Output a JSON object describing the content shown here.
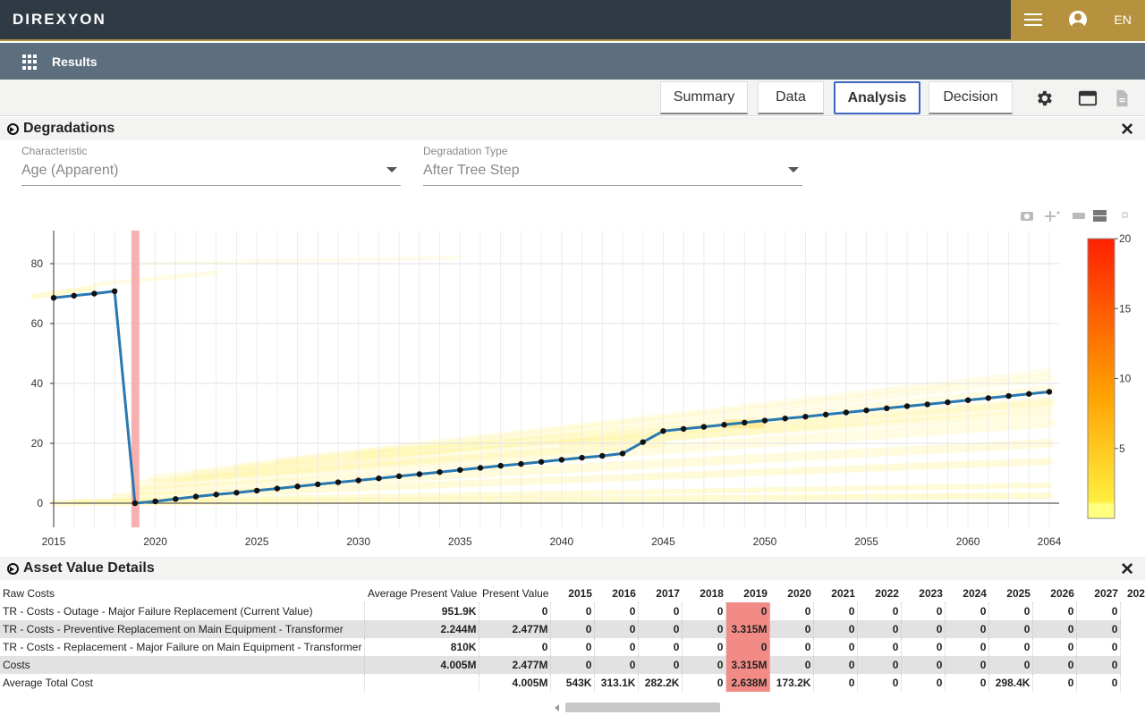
{
  "app": {
    "logo": "DIREXYON",
    "language": "EN"
  },
  "subbar": {
    "title": "Results"
  },
  "tabs": [
    {
      "label": "Summary"
    },
    {
      "label": "Data"
    },
    {
      "label": "Analysis",
      "active": true
    },
    {
      "label": "Decision"
    }
  ],
  "degradations": {
    "title": "Degradations",
    "characteristic_label": "Characteristic",
    "characteristic_value": "Age (Apparent)",
    "type_label": "Degradation Type",
    "type_value": "After Tree Step"
  },
  "chart_data": {
    "type": "line",
    "title": "",
    "xlabel": "",
    "ylabel": "",
    "xlim": [
      2015,
      2064
    ],
    "ylim": [
      -3,
      90
    ],
    "x_ticks": [
      2015,
      2020,
      2025,
      2030,
      2035,
      2040,
      2045,
      2050,
      2055,
      2060,
      2064
    ],
    "y_ticks": [
      0,
      20,
      40,
      60,
      80
    ],
    "grid": true,
    "highlight_year": 2019,
    "colorbar": {
      "ticks": [
        5,
        10,
        15,
        20
      ],
      "range": [
        0,
        20
      ],
      "colors": [
        "#ffff8c",
        "#ff9a00",
        "#ff2a00"
      ]
    },
    "series": [
      {
        "x": [
          2015,
          2016,
          2017,
          2018,
          2019,
          2020,
          2021,
          2022,
          2023,
          2024,
          2025,
          2026,
          2027,
          2028,
          2029,
          2030,
          2031,
          2032,
          2033,
          2034,
          2035,
          2036,
          2037,
          2038,
          2039,
          2040,
          2041,
          2042,
          2043,
          2044,
          2045,
          2046,
          2047,
          2048,
          2049,
          2050,
          2051,
          2052,
          2053,
          2054,
          2055,
          2056,
          2057,
          2058,
          2059,
          2060,
          2061,
          2062,
          2063,
          2064
        ],
        "values": [
          68.6,
          69.3,
          70,
          70.8,
          0,
          0.6,
          1.4,
          2.2,
          2.9,
          3.5,
          4.2,
          4.9,
          5.6,
          6.3,
          7,
          7.6,
          8.3,
          9,
          9.7,
          10.4,
          11.1,
          11.8,
          12.5,
          13.1,
          13.8,
          14.5,
          15.2,
          15.8,
          16.6,
          20.4,
          24.1,
          24.8,
          25.5,
          26.2,
          26.9,
          27.6,
          28.3,
          28.9,
          29.6,
          30.3,
          31,
          31.7,
          32.4,
          33,
          33.7,
          34.4,
          35.1,
          35.8,
          36.5,
          37.2
        ]
      }
    ]
  },
  "asset_value": {
    "title": "Asset Value Details",
    "columns": [
      "Raw Costs",
      "Average Present Value",
      "Present Value",
      "2015",
      "2016",
      "2017",
      "2018",
      "2019",
      "2020",
      "2021",
      "2022",
      "2023",
      "2024",
      "2025",
      "2026",
      "2027",
      "202"
    ],
    "highlight_col": 7,
    "rows": [
      {
        "cells": [
          "TR - Costs - Outage - Major Failure Replacement (Current Value)",
          "951.9K",
          "0",
          "0",
          "0",
          "0",
          "0",
          "0",
          "0",
          "0",
          "0",
          "0",
          "0",
          "0",
          "0",
          "0"
        ]
      },
      {
        "cells": [
          "TR - Costs - Preventive Replacement on Main Equipment - Transformer",
          "2.244M",
          "2.477M",
          "0",
          "0",
          "0",
          "0",
          "3.315M",
          "0",
          "0",
          "0",
          "0",
          "0",
          "0",
          "0",
          "0"
        ]
      },
      {
        "cells": [
          "TR - Costs - Replacement - Major Failure on Main Equipment - Transformer",
          "810K",
          "0",
          "0",
          "0",
          "0",
          "0",
          "0",
          "0",
          "0",
          "0",
          "0",
          "0",
          "0",
          "0",
          "0"
        ]
      },
      {
        "cells": [
          "Costs",
          "4.005M",
          "2.477M",
          "0",
          "0",
          "0",
          "0",
          "3.315M",
          "0",
          "0",
          "0",
          "0",
          "0",
          "0",
          "0",
          "0"
        ]
      },
      {
        "cells": [
          "Average Total Cost",
          "",
          "4.005M",
          "543K",
          "313.1K",
          "282.2K",
          "0",
          "2.638M",
          "173.2K",
          "0",
          "0",
          "0",
          "0",
          "298.4K",
          "0",
          "0"
        ]
      }
    ]
  }
}
